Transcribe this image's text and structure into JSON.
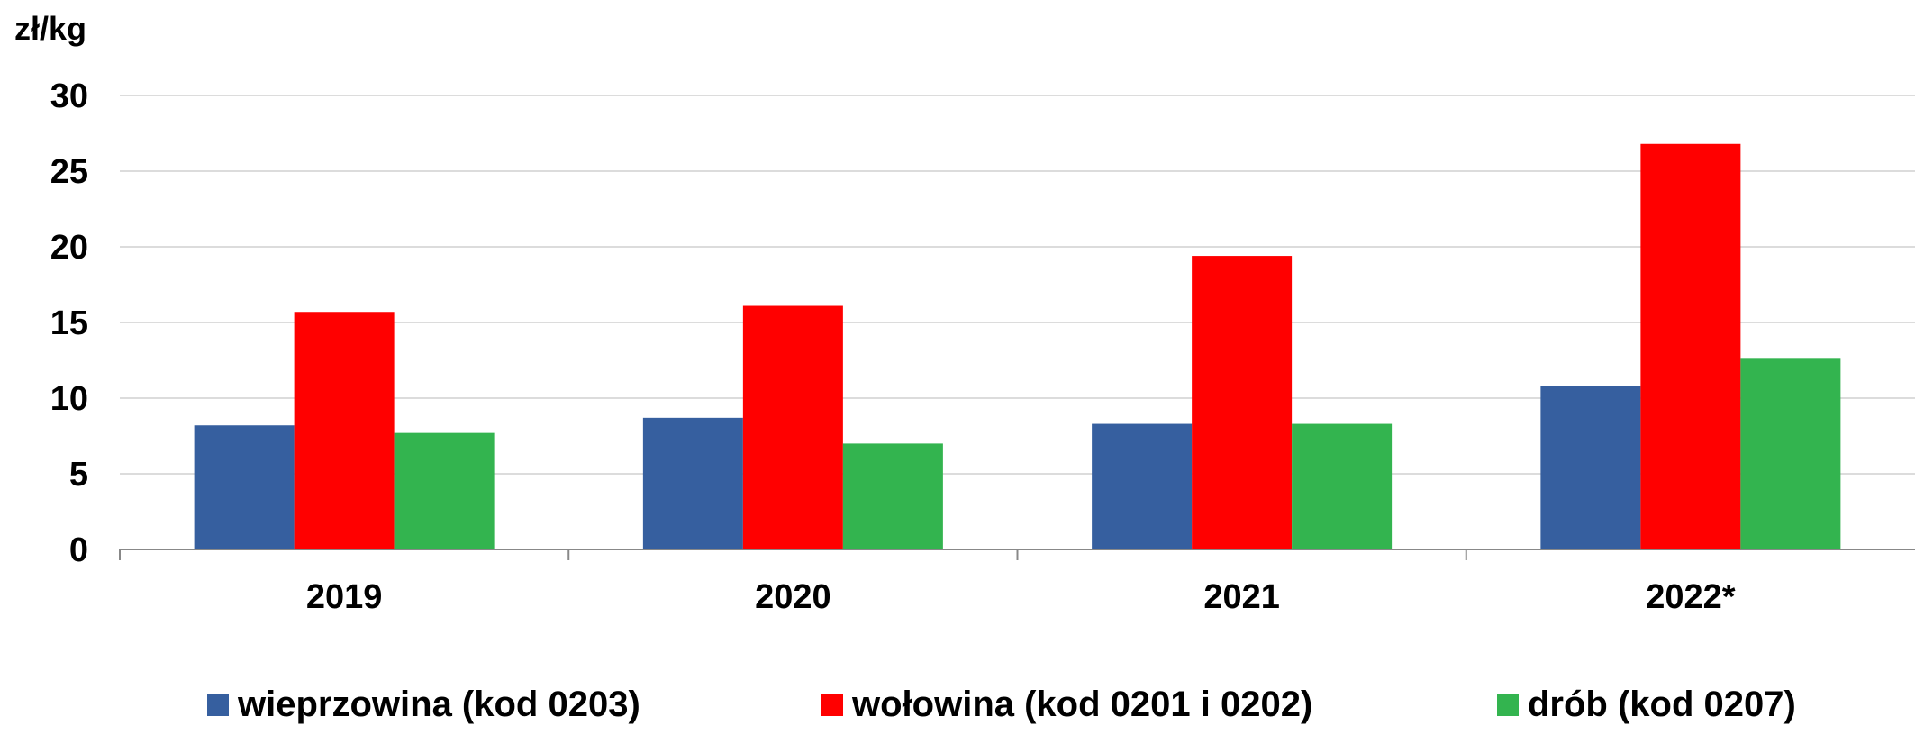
{
  "chart_data": {
    "type": "bar",
    "unit_label": "zł/kg",
    "categories": [
      "2019",
      "2020",
      "2021",
      "2022*"
    ],
    "series": [
      {
        "name": "wieprzowina (kod 0203)",
        "color": "#365F9F",
        "values": [
          8.2,
          8.7,
          8.3,
          10.8
        ]
      },
      {
        "name": "wołowina (kod 0201 i 0202)",
        "color": "#FF0000",
        "values": [
          15.7,
          16.1,
          19.4,
          26.8
        ]
      },
      {
        "name": "drób (kod 0207)",
        "color": "#33B44F",
        "values": [
          7.7,
          7.0,
          8.3,
          12.6
        ]
      }
    ],
    "ylim": [
      0,
      30
    ],
    "yticks": [
      0,
      5,
      10,
      15,
      20,
      25,
      30
    ],
    "grid": true,
    "legend_position": "bottom"
  }
}
